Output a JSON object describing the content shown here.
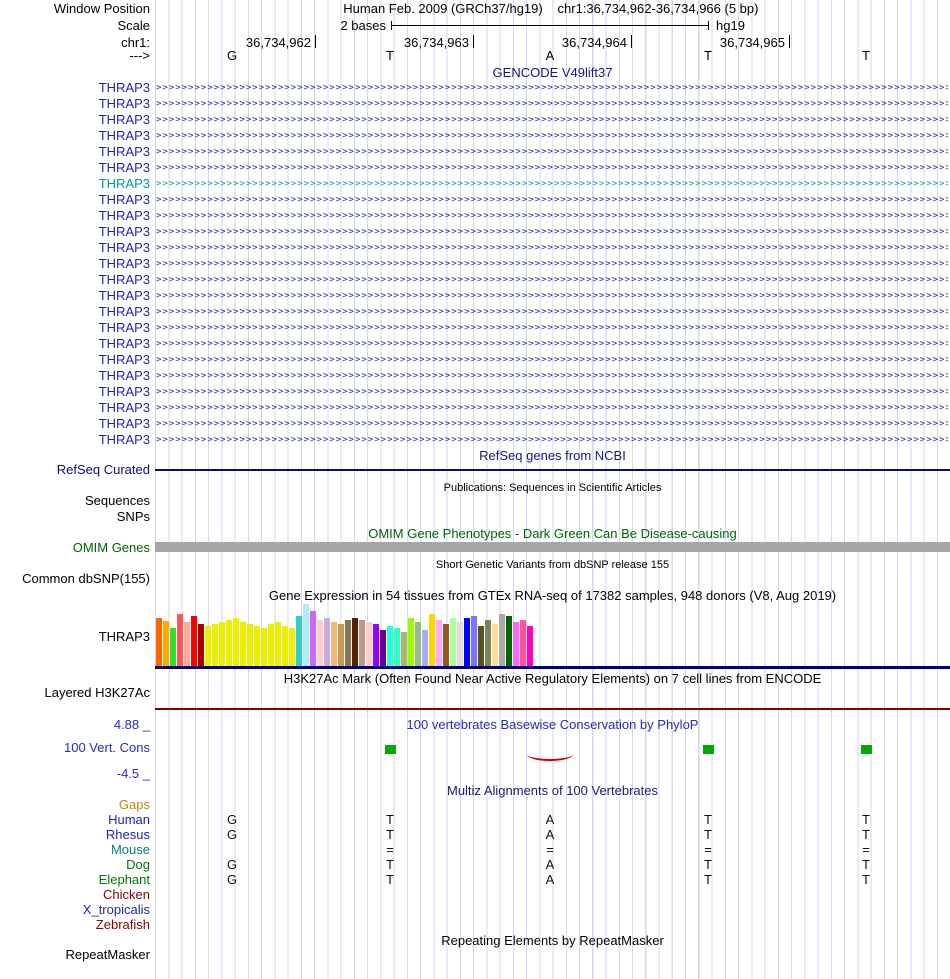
{
  "header": {
    "window_position_label": "Window Position",
    "assembly": "Human Feb. 2009 (GRCh37/hg19)",
    "position": "chr1:36,734,962-36,734,966 (5 bp)",
    "scale_label": "Scale",
    "scale_value": "2 bases",
    "scale_assembly": "hg19",
    "chrom_label": "chr1:",
    "coords": [
      "36,734,962",
      "36,734,963",
      "36,734,964",
      "36,734,965"
    ],
    "strand_label": "--->",
    "bases": [
      "G",
      "T",
      "A",
      "T",
      "T"
    ]
  },
  "tracks": {
    "gencode": {
      "title": "GENCODE V49lift37",
      "gene_label": "THRAP3",
      "arrow_glyph": ">",
      "rows": [
        {
          "color": "#2323b4"
        },
        {
          "color": "#2323b4"
        },
        {
          "color": "#2323b4"
        },
        {
          "color": "#2323b4"
        },
        {
          "color": "#2323b4"
        },
        {
          "color": "#2323b4"
        },
        {
          "color": "#009999"
        },
        {
          "color": "#2323b4"
        },
        {
          "color": "#2323b4"
        },
        {
          "color": "#2323b4"
        },
        {
          "color": "#2323b4"
        },
        {
          "color": "#2323b4"
        },
        {
          "color": "#2323b4"
        },
        {
          "color": "#2323b4"
        },
        {
          "color": "#2323b4"
        },
        {
          "color": "#2323b4"
        },
        {
          "color": "#2323b4"
        },
        {
          "color": "#2323b4"
        },
        {
          "color": "#2323b4"
        },
        {
          "color": "#2323b4"
        },
        {
          "color": "#2323b4"
        },
        {
          "color": "#2323b4"
        },
        {
          "color": "#2323b4"
        }
      ]
    },
    "refseq": {
      "title": "RefSeq genes from NCBI",
      "label": "RefSeq Curated",
      "line_color": "#0c0c78"
    },
    "publications": {
      "title": "Publications: Sequences in Scientific Articles",
      "sequences_label": "Sequences",
      "snps_label": "SNPs"
    },
    "omim": {
      "title": "OMIM Gene Phenotypes - Dark Green Can Be Disease-causing",
      "label": "OMIM Genes",
      "bar_color": "#a6a6a6"
    },
    "dbsnp": {
      "title": "Short Genetic Variants from dbSNP release 155",
      "label": "Common dbSNP(155)"
    },
    "gtex": {
      "title": "Gene Expression in 54 tissues from GTEx RNA-seq of 17382 samples, 948 donors (V8, Aug 2019)",
      "label": "THRAP3",
      "baseline_color": "#000080",
      "bar_colors": [
        "#FF6600",
        "#FFAA00",
        "#33DD33",
        "#FF5555",
        "#FFAA99",
        "#FF0000",
        "#AA0000",
        "#EEEE00",
        "#EEEE00",
        "#EEEE00",
        "#EEEE00",
        "#EEEE00",
        "#EEEE00",
        "#EEEE00",
        "#EEEE00",
        "#EEEE00",
        "#EEEE00",
        "#EEEE00",
        "#EEEE00",
        "#EEEE00",
        "#33CCCC",
        "#AAEEFF",
        "#CC66FF",
        "#FFCCCC",
        "#CCAADD",
        "#EEBB77",
        "#CC9955",
        "#8B7355",
        "#552200",
        "#BB9988",
        "#FFCCCC",
        "#9900FF",
        "#660099",
        "#22FFDD",
        "#33FFC2",
        "#AABB66",
        "#99FF00",
        "#99BB88",
        "#AAAAFF",
        "#FFD700",
        "#FFAAFF",
        "#995522",
        "#AAFF99",
        "#DDDDDD",
        "#0000FF",
        "#7777FF",
        "#555522",
        "#778855",
        "#FFDD99",
        "#AAAAAA",
        "#006600",
        "#FF66FF",
        "#FF5599",
        "#FF00BB"
      ],
      "bar_heights": [
        48,
        45,
        38,
        52,
        44,
        50,
        42,
        40,
        42,
        44,
        46,
        48,
        44,
        42,
        40,
        38,
        42,
        44,
        40,
        38,
        50,
        62,
        55,
        46,
        48,
        44,
        42,
        46,
        48,
        46,
        44,
        42,
        36,
        40,
        38,
        34,
        48,
        44,
        36,
        52,
        46,
        42,
        48,
        44,
        48,
        50,
        40,
        46,
        42,
        52,
        50,
        44,
        46,
        40
      ]
    },
    "h3k27ac": {
      "title": "H3K27Ac Mark (Often Found Near Active Regulatory Elements) on 7 cell lines from ENCODE",
      "label": "Layered H3K27Ac",
      "line_color": "#7d0000"
    },
    "phylop": {
      "title": "100 vertebrates Basewise Conservation by PhyloP",
      "label": "100 Vert. Cons",
      "max_label": "4.88 _",
      "min_label": "-4.5 _",
      "bar_color": "#00aa00",
      "dip_color": "#cc0000",
      "green_cols": [
        1,
        3,
        4
      ],
      "dip_col": 2
    },
    "multiz": {
      "title": "Multiz Alignments of 100 Vertebrates",
      "rows": [
        {
          "label": "Gaps",
          "color": "#c08a00",
          "bases": [
            "",
            "",
            "",
            "",
            ""
          ]
        },
        {
          "label": "Human",
          "color": "#2323b4",
          "bases": [
            "G",
            "T",
            "A",
            "T",
            "T"
          ]
        },
        {
          "label": "Rhesus",
          "color": "#2323b4",
          "bases": [
            "G",
            "T",
            "A",
            "T",
            "T"
          ]
        },
        {
          "label": "Mouse",
          "color": "#008080",
          "bases": [
            "",
            "=",
            "=",
            "=",
            "="
          ]
        },
        {
          "label": "Dog",
          "color": "#007700",
          "bases": [
            "G",
            "T",
            "A",
            "T",
            "T"
          ]
        },
        {
          "label": "Elephant",
          "color": "#007700",
          "bases": [
            "G",
            "T",
            "A",
            "T",
            "T"
          ]
        },
        {
          "label": "Chicken",
          "color": "#8b0000",
          "bases": [
            "",
            "",
            "",
            "",
            ""
          ]
        },
        {
          "label": "X_tropicalis",
          "color": "#2323b4",
          "bases": [
            "",
            "",
            "",
            "",
            ""
          ]
        },
        {
          "label": "Zebrafish",
          "color": "#8b0000",
          "bases": [
            "",
            "",
            "",
            "",
            ""
          ]
        }
      ]
    },
    "repeatmasker": {
      "title": "Repeating Elements by RepeatMasker",
      "label": "RepeatMasker"
    }
  }
}
